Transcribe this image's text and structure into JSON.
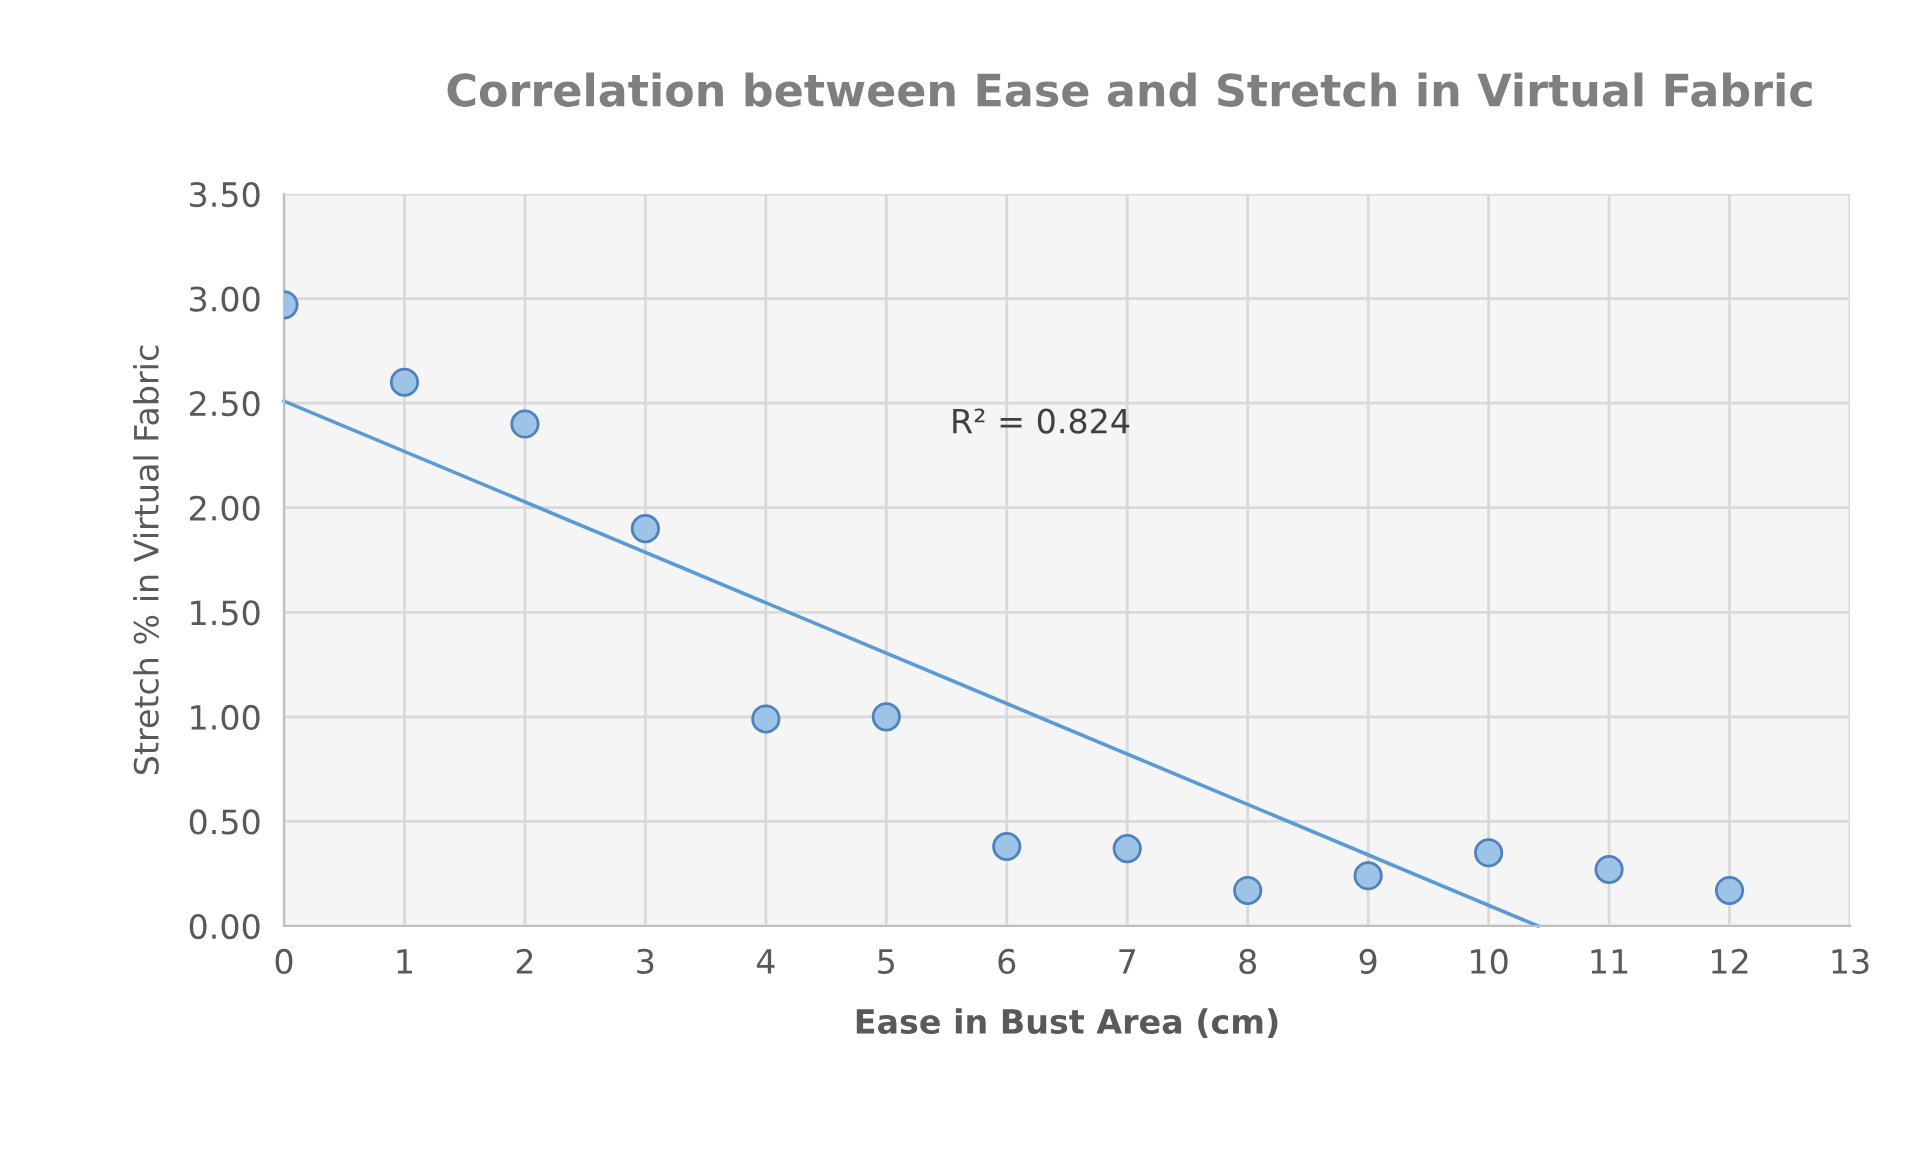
{
  "chart_data": {
    "type": "scatter",
    "title": "Correlation between Ease and Stretch in Virtual Fabric",
    "xlabel": "Ease in Bust Area (cm)",
    "ylabel": "Stretch % in Virtual Fabric",
    "series": [
      {
        "marker": "circle",
        "color": "#9dc3e6",
        "x": [
          0,
          1,
          2,
          3,
          4,
          5,
          6,
          7,
          8,
          9,
          10,
          11,
          12
        ],
        "values": [
          2.97,
          2.6,
          2.4,
          1.9,
          0.99,
          1.0,
          0.38,
          0.37,
          0.17,
          0.24,
          0.35,
          0.27,
          0.17
        ]
      },
      {
        "type": "line",
        "color": "#5b9bd5",
        "x": [
          0,
          10.41
        ],
        "values": [
          2.51,
          0
        ]
      }
    ],
    "annotations": [
      "R² = 0.824"
    ],
    "xlim": [
      0,
      13
    ],
    "xticks": [
      0,
      1,
      2,
      3,
      4,
      5,
      6,
      7,
      8,
      9,
      10,
      11,
      12,
      13
    ],
    "ylim": [
      0,
      3.5
    ],
    "yticks": [
      {
        "value": 0,
        "label": "0.00"
      },
      {
        "value": 0.5,
        "label": "0.50"
      },
      {
        "value": 1,
        "label": "1.00"
      },
      {
        "value": 1.5,
        "label": "1.50"
      },
      {
        "value": 2,
        "label": "2.00"
      },
      {
        "value": 2.5,
        "label": "2.50"
      },
      {
        "value": 3,
        "label": "3.00"
      },
      {
        "value": 3.5,
        "label": "3.50"
      }
    ],
    "grid": true
  }
}
